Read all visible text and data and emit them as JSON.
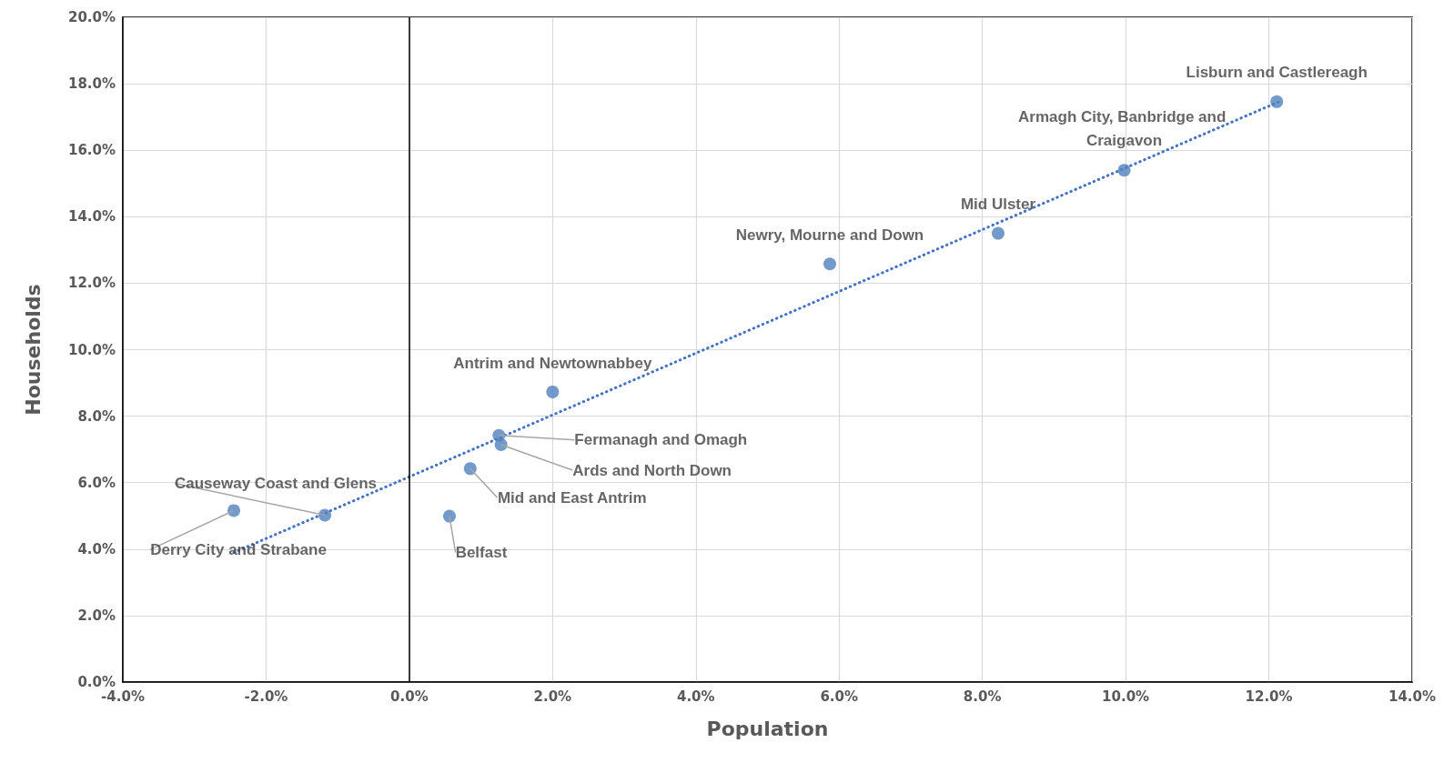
{
  "chart_data": {
    "type": "scatter",
    "xlabel": "Population",
    "ylabel": "Households",
    "xlim": [
      -4,
      14
    ],
    "ylim": [
      0,
      20
    ],
    "xticks": [
      {
        "value": -4,
        "label": "-4.0%"
      },
      {
        "value": -2,
        "label": "-2.0%"
      },
      {
        "value": 0,
        "label": "0.0%"
      },
      {
        "value": 2,
        "label": "2.0%"
      },
      {
        "value": 4,
        "label": "4.0%"
      },
      {
        "value": 6,
        "label": "6.0%"
      },
      {
        "value": 8,
        "label": "8.0%"
      },
      {
        "value": 10,
        "label": "10.0%"
      },
      {
        "value": 12,
        "label": "12.0%"
      },
      {
        "value": 14,
        "label": "14.0%"
      }
    ],
    "yticks": [
      {
        "value": 0,
        "label": "0.0%"
      },
      {
        "value": 2,
        "label": "2.0%"
      },
      {
        "value": 4,
        "label": "4.0%"
      },
      {
        "value": 6,
        "label": "6.0%"
      },
      {
        "value": 8,
        "label": "8.0%"
      },
      {
        "value": 10,
        "label": "10.0%"
      },
      {
        "value": 12,
        "label": "12.0%"
      },
      {
        "value": 14,
        "label": "14.0%"
      },
      {
        "value": 16,
        "label": "16.0%"
      },
      {
        "value": 18,
        "label": "18.0%"
      },
      {
        "value": 20,
        "label": "20.0%"
      }
    ],
    "grid": true,
    "marker": "circle",
    "series": [
      {
        "color": "#4f81bd",
        "x": [
          12.11,
          9.98,
          8.22,
          5.87,
          2.0,
          1.25,
          1.28,
          0.85,
          0.56,
          -1.18,
          -2.45
        ],
        "values": [
          17.46,
          15.4,
          13.5,
          12.58,
          8.73,
          7.42,
          7.14,
          6.42,
          4.99,
          5.02,
          5.16
        ]
      },
      {
        "type": "line",
        "color": "#4472c4",
        "line_style": "dotted",
        "marker": "none",
        "x": [
          -2.45,
          12.13
        ],
        "values": [
          3.9,
          17.45
        ]
      }
    ],
    "ref_lines": [
      {
        "axis": "x",
        "value": 0,
        "color": "#000000"
      }
    ],
    "annotations": [
      {
        "text": "Lisburn and Castlereagh",
        "x": 12.11,
        "y": 17.46
      },
      {
        "text": "Armagh City, Banbridge and Craigavon",
        "x": 9.98,
        "y": 15.4
      },
      {
        "text": "Mid Ulster",
        "x": 8.22,
        "y": 13.5
      },
      {
        "text": "Newry, Mourne and Down",
        "x": 5.87,
        "y": 12.58
      },
      {
        "text": "Antrim and Newtownabbey",
        "x": 2.0,
        "y": 8.73
      },
      {
        "text": "Fermanagh and Omagh",
        "x": 1.25,
        "y": 7.42
      },
      {
        "text": "Ards and North Down",
        "x": 1.28,
        "y": 7.14
      },
      {
        "text": "Mid and East Antrim",
        "x": 0.85,
        "y": 6.42
      },
      {
        "text": "Belfast",
        "x": 0.56,
        "y": 4.99
      },
      {
        "text": "Causeway Coast and Glens",
        "x": -1.18,
        "y": 5.02
      },
      {
        "text": "Derry City and Strabane",
        "x": -2.45,
        "y": 5.16
      }
    ]
  }
}
